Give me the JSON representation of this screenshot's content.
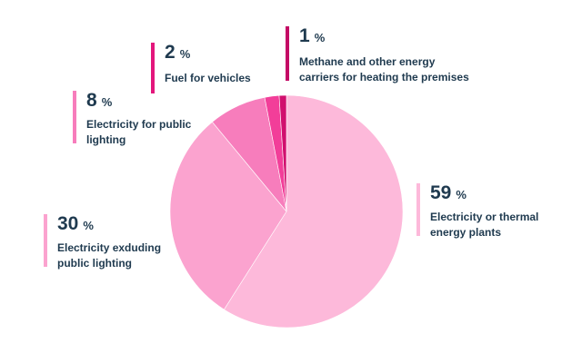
{
  "chart_data": {
    "type": "pie",
    "unit_label": "%",
    "slices": [
      {
        "value": 59,
        "label": "Electricity or thermal energy plants",
        "color": "#fdb9da"
      },
      {
        "value": 30,
        "label": "Electricity exduding public lighting",
        "color": "#fba3cf"
      },
      {
        "value": 8,
        "label": "Electricity for public lighting",
        "color": "#f77dbc"
      },
      {
        "value": 2,
        "label": "Fuel for vehicles",
        "color": "#f23e99"
      },
      {
        "value": 1,
        "label": "Methane and other energy carriers for heating the premises",
        "color": "#d10f6e"
      }
    ]
  },
  "callouts": [
    {
      "value": "59",
      "unit": "%",
      "lines": [
        "Electricity or thermal",
        "energy plants"
      ],
      "bar_color": "#fdb9da"
    },
    {
      "value": "30",
      "unit": "%",
      "lines": [
        "Electricity exduding",
        "public lighting"
      ],
      "bar_color": "#fba3cf"
    },
    {
      "value": "8",
      "unit": "%",
      "lines": [
        "Electricity for public",
        "lighting"
      ],
      "bar_color": "#f77dbc"
    },
    {
      "value": "2",
      "unit": "%",
      "lines": [
        "Fuel for vehicles"
      ],
      "bar_color": "#e3177c"
    },
    {
      "value": "1",
      "unit": "%",
      "lines": [
        "Methane and other energy",
        "carriers for heating the premises"
      ],
      "bar_color": "#c40a65"
    }
  ]
}
